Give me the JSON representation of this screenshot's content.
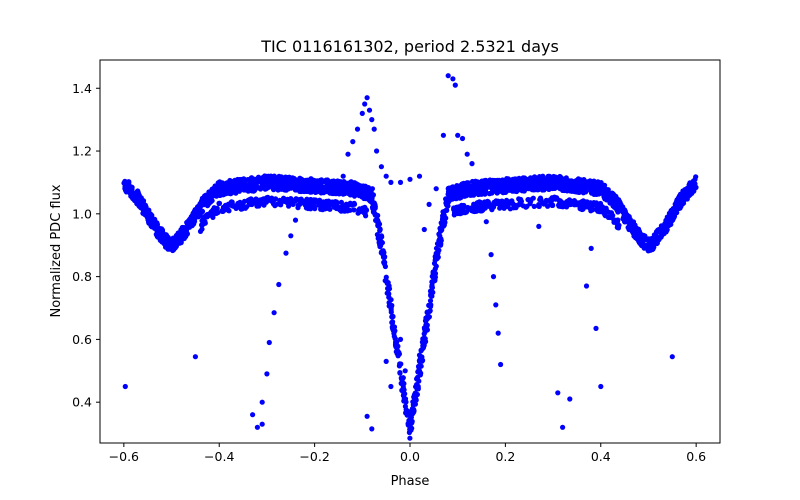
{
  "chart_data": {
    "type": "scatter",
    "title": "TIC 0116161302, period 2.5321 days",
    "xlabel": "Phase",
    "ylabel": "Normalized PDC flux",
    "xlim": [
      -0.65,
      0.65
    ],
    "ylim": [
      0.27,
      1.49
    ],
    "xticks": [
      -0.6,
      -0.4,
      -0.2,
      0.0,
      0.2,
      0.4,
      0.6
    ],
    "xtick_labels": [
      "−0.6",
      "−0.4",
      "−0.2",
      "0.0",
      "0.2",
      "0.4",
      "0.6"
    ],
    "yticks": [
      0.4,
      0.6,
      0.8,
      1.0,
      1.2,
      1.4
    ],
    "ytick_labels": [
      "0.4",
      "0.6",
      "0.8",
      "1.0",
      "1.2",
      "1.4"
    ],
    "grid": false,
    "marker_color": "#0000ff",
    "series": [
      {
        "curve": [
          [
            -0.6,
            1.1
          ],
          [
            -0.57,
            1.05
          ],
          [
            -0.54,
            0.97
          ],
          [
            -0.51,
            0.91
          ],
          [
            -0.5,
            0.9
          ],
          [
            -0.49,
            0.91
          ],
          [
            -0.46,
            0.97
          ],
          [
            -0.43,
            1.04
          ],
          [
            -0.4,
            1.08
          ],
          [
            -0.35,
            1.09
          ],
          [
            -0.3,
            1.1
          ],
          [
            -0.2,
            1.09
          ],
          [
            -0.12,
            1.08
          ],
          [
            -0.08,
            1.06
          ],
          [
            -0.06,
            0.9
          ],
          [
            -0.04,
            0.7
          ],
          [
            -0.02,
            0.5
          ],
          [
            0.0,
            0.31
          ],
          [
            0.02,
            0.5
          ],
          [
            0.04,
            0.7
          ],
          [
            0.06,
            0.9
          ],
          [
            0.08,
            1.06
          ],
          [
            0.12,
            1.08
          ],
          [
            0.2,
            1.09
          ],
          [
            0.3,
            1.1
          ],
          [
            0.35,
            1.09
          ],
          [
            0.4,
            1.08
          ],
          [
            0.43,
            1.04
          ],
          [
            0.46,
            0.97
          ],
          [
            0.49,
            0.91
          ],
          [
            0.5,
            0.9
          ],
          [
            0.51,
            0.91
          ],
          [
            0.54,
            0.97
          ],
          [
            0.57,
            1.05
          ],
          [
            0.6,
            1.1
          ]
        ],
        "outliers": [
          [
            -0.597,
            0.45
          ],
          [
            -0.45,
            0.545
          ],
          [
            -0.33,
            0.36
          ],
          [
            -0.32,
            0.32
          ],
          [
            -0.31,
            0.33
          ],
          [
            -0.31,
            0.4
          ],
          [
            -0.3,
            0.49
          ],
          [
            -0.295,
            0.59
          ],
          [
            -0.285,
            0.685
          ],
          [
            -0.275,
            0.775
          ],
          [
            -0.26,
            0.875
          ],
          [
            -0.25,
            0.93
          ],
          [
            -0.24,
            0.98
          ],
          [
            -0.21,
            1.02
          ],
          [
            -0.19,
            1.03
          ],
          [
            -0.14,
            1.12
          ],
          [
            -0.13,
            1.19
          ],
          [
            -0.12,
            1.23
          ],
          [
            -0.11,
            1.27
          ],
          [
            -0.1,
            1.32
          ],
          [
            -0.095,
            1.35
          ],
          [
            -0.09,
            1.37
          ],
          [
            -0.085,
            1.33
          ],
          [
            -0.08,
            1.3
          ],
          [
            -0.075,
            1.27
          ],
          [
            -0.07,
            1.2
          ],
          [
            -0.06,
            1.15
          ],
          [
            -0.05,
            1.12
          ],
          [
            -0.04,
            1.1
          ],
          [
            -0.02,
            1.1
          ],
          [
            0.0,
            1.11
          ],
          [
            0.02,
            1.12
          ],
          [
            -0.09,
            0.355
          ],
          [
            -0.08,
            0.315
          ],
          [
            -0.05,
            0.53
          ],
          [
            -0.04,
            0.45
          ],
          [
            -0.03,
            0.58
          ],
          [
            -0.02,
            0.6
          ],
          [
            -0.01,
            0.5
          ],
          [
            0.02,
            0.55
          ],
          [
            0.03,
            0.95
          ],
          [
            0.04,
            1.03
          ],
          [
            0.055,
            1.08
          ],
          [
            0.07,
            1.25
          ],
          [
            0.08,
            1.44
          ],
          [
            0.09,
            1.43
          ],
          [
            0.095,
            1.41
          ],
          [
            0.1,
            1.25
          ],
          [
            0.11,
            1.24
          ],
          [
            0.12,
            1.19
          ],
          [
            0.13,
            1.16
          ],
          [
            0.15,
            1.02
          ],
          [
            0.16,
            0.975
          ],
          [
            0.17,
            0.87
          ],
          [
            0.175,
            0.8
          ],
          [
            0.18,
            0.71
          ],
          [
            0.185,
            0.62
          ],
          [
            0.19,
            0.52
          ],
          [
            0.27,
            0.96
          ],
          [
            0.31,
            0.43
          ],
          [
            0.32,
            0.32
          ],
          [
            0.335,
            0.41
          ],
          [
            0.37,
            0.77
          ],
          [
            0.38,
            0.89
          ],
          [
            0.39,
            0.635
          ],
          [
            0.4,
            0.45
          ],
          [
            0.42,
            1.06
          ],
          [
            0.55,
            0.545
          ]
        ]
      }
    ]
  }
}
